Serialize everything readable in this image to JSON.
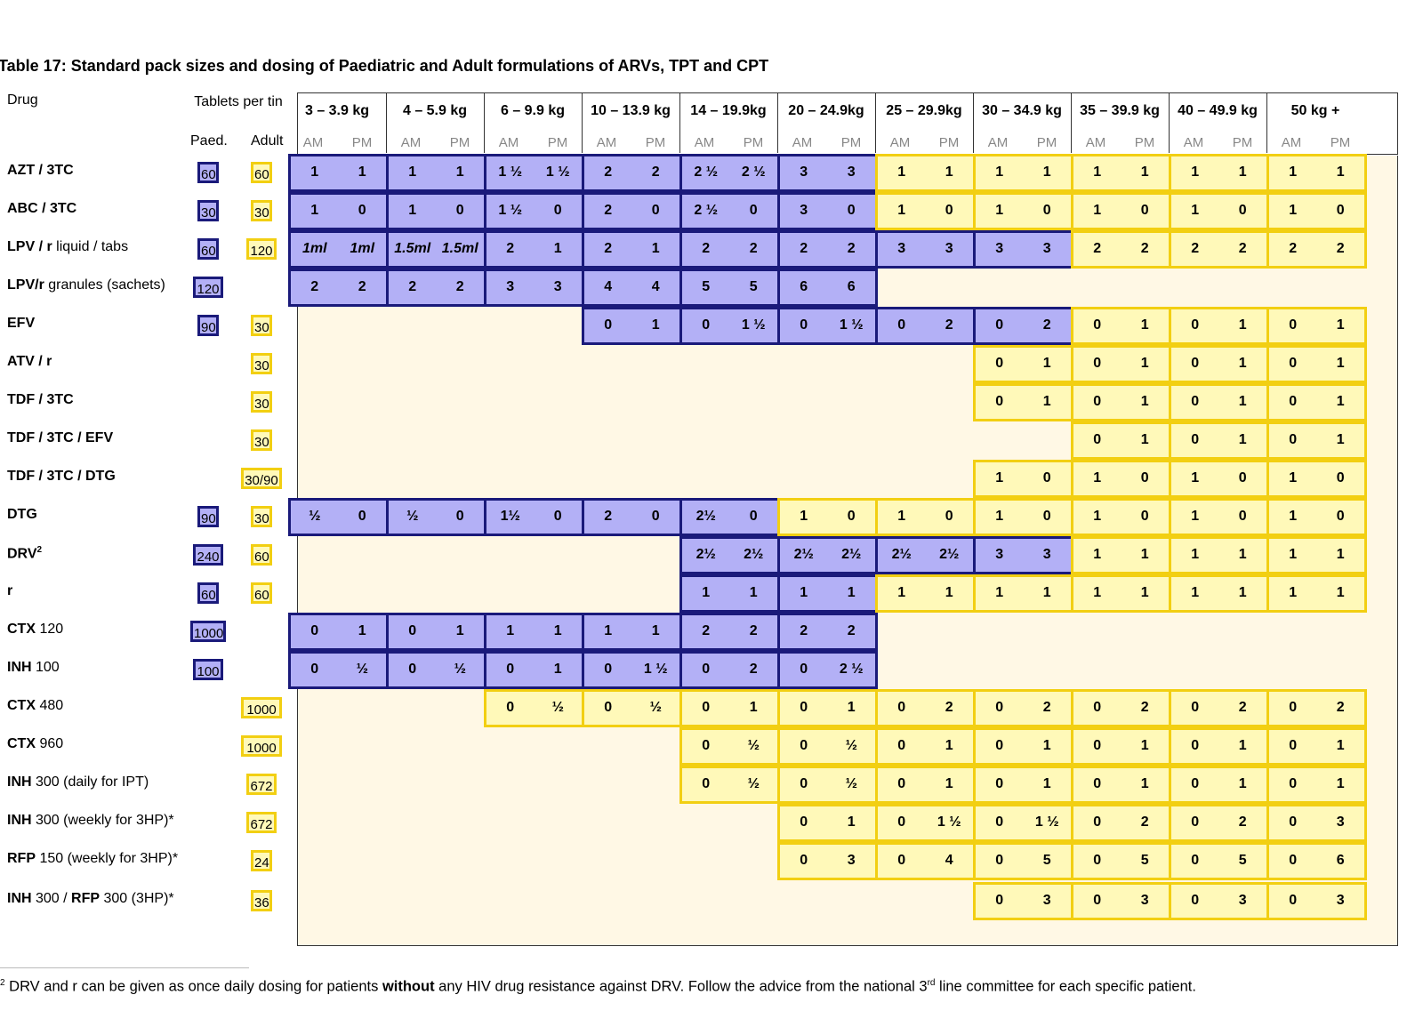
{
  "title": "Table 17:   Standard pack sizes and dosing of Paediatric and Adult formulations of ARVs, TPT and CPT",
  "headers": {
    "drug": "Drug",
    "tablets_per_tin": "Tablets per tin",
    "paed": "Paed.",
    "adult": "Adult",
    "am": "AM",
    "pm": "PM"
  },
  "weight_bands": [
    "3 – 3.9 kg",
    "4 – 5.9 kg",
    "6 – 9.9 kg",
    "10 – 13.9 kg",
    "14 – 19.9kg",
    "20 – 24.9kg",
    "25 – 29.9kg",
    "30 – 34.9 kg",
    "35 – 39.9 kg",
    "40 – 49.9 kg",
    "50 kg +"
  ],
  "colors": {
    "paediatric_fill": "#b3b0f6",
    "paediatric_border": "#1a1a7a",
    "adult_fill": "#fff9b9",
    "adult_border": "#f2cf12",
    "empty_fill": "#fff8e5"
  },
  "rows": [
    {
      "drug_bold": "AZT / 3TC",
      "drug_rest": "",
      "drug_sup": "",
      "paed": "60",
      "adult": "60",
      "doses": [
        [
          "p",
          "1",
          "1"
        ],
        [
          "p",
          "1",
          "1"
        ],
        [
          "p",
          "1 ½",
          "1 ½"
        ],
        [
          "p",
          "2",
          "2"
        ],
        [
          "p",
          "2 ½",
          "2 ½"
        ],
        [
          "p",
          "3",
          "3"
        ],
        [
          "a",
          "1",
          "1"
        ],
        [
          "a",
          "1",
          "1"
        ],
        [
          "a",
          "1",
          "1"
        ],
        [
          "a",
          "1",
          "1"
        ],
        [
          "a",
          "1",
          "1"
        ]
      ]
    },
    {
      "drug_bold": "ABC / 3TC",
      "drug_rest": "",
      "drug_sup": "",
      "paed": "30",
      "adult": "30",
      "doses": [
        [
          "p",
          "1",
          "0"
        ],
        [
          "p",
          "1",
          "0"
        ],
        [
          "p",
          "1 ½",
          "0"
        ],
        [
          "p",
          "2",
          "0"
        ],
        [
          "p",
          "2 ½",
          "0"
        ],
        [
          "p",
          "3",
          "0"
        ],
        [
          "a",
          "1",
          "0"
        ],
        [
          "a",
          "1",
          "0"
        ],
        [
          "a",
          "1",
          "0"
        ],
        [
          "a",
          "1",
          "0"
        ],
        [
          "a",
          "1",
          "0"
        ]
      ]
    },
    {
      "drug_bold": "LPV / r",
      "drug_rest": " liquid / tabs",
      "drug_sup": "",
      "paed": "60",
      "adult": "120",
      "doses": [
        [
          "pi",
          "1ml",
          "1ml"
        ],
        [
          "pi",
          "1.5ml",
          "1.5ml"
        ],
        [
          "p",
          "2",
          "1"
        ],
        [
          "p",
          "2",
          "1"
        ],
        [
          "p",
          "2",
          "2"
        ],
        [
          "p",
          "2",
          "2"
        ],
        [
          "p",
          "3",
          "3"
        ],
        [
          "p",
          "3",
          "3"
        ],
        [
          "a",
          "2",
          "2"
        ],
        [
          "a",
          "2",
          "2"
        ],
        [
          "a",
          "2",
          "2"
        ]
      ]
    },
    {
      "drug_bold": "LPV/r",
      "drug_rest": " granules (sachets)",
      "drug_sup": "",
      "paed": "120",
      "adult": "",
      "doses": [
        [
          "p",
          "2",
          "2"
        ],
        [
          "p",
          "2",
          "2"
        ],
        [
          "p",
          "3",
          "3"
        ],
        [
          "p",
          "4",
          "4"
        ],
        [
          "p",
          "5",
          "5"
        ],
        [
          "p",
          "6",
          "6"
        ],
        null,
        null,
        null,
        null,
        null
      ]
    },
    {
      "drug_bold": "EFV",
      "drug_rest": "",
      "drug_sup": "",
      "paed": "90",
      "adult": "30",
      "doses": [
        null,
        null,
        null,
        [
          "p",
          "0",
          "1"
        ],
        [
          "p",
          "0",
          "1 ½"
        ],
        [
          "p",
          "0",
          "1 ½"
        ],
        [
          "p",
          "0",
          "2"
        ],
        [
          "p",
          "0",
          "2"
        ],
        [
          "a",
          "0",
          "1"
        ],
        [
          "a",
          "0",
          "1"
        ],
        [
          "a",
          "0",
          "1"
        ]
      ]
    },
    {
      "drug_bold": "ATV / r",
      "drug_rest": "",
      "drug_sup": "",
      "paed": "",
      "adult": "30",
      "doses": [
        null,
        null,
        null,
        null,
        null,
        null,
        null,
        [
          "a",
          "0",
          "1"
        ],
        [
          "a",
          "0",
          "1"
        ],
        [
          "a",
          "0",
          "1"
        ],
        [
          "a",
          "0",
          "1"
        ]
      ]
    },
    {
      "drug_bold": "TDF / 3TC",
      "drug_rest": "",
      "drug_sup": "",
      "paed": "",
      "adult": "30",
      "doses": [
        null,
        null,
        null,
        null,
        null,
        null,
        null,
        [
          "a",
          "0",
          "1"
        ],
        [
          "a",
          "0",
          "1"
        ],
        [
          "a",
          "0",
          "1"
        ],
        [
          "a",
          "0",
          "1"
        ]
      ]
    },
    {
      "drug_bold": "TDF / 3TC / EFV",
      "drug_rest": "",
      "drug_sup": "",
      "paed": "",
      "adult": "30",
      "doses": [
        null,
        null,
        null,
        null,
        null,
        null,
        null,
        null,
        [
          "a",
          "0",
          "1"
        ],
        [
          "a",
          "0",
          "1"
        ],
        [
          "a",
          "0",
          "1"
        ]
      ]
    },
    {
      "drug_bold": "TDF / 3TC / DTG",
      "drug_rest": "",
      "drug_sup": "",
      "paed": "",
      "adult": "30/90",
      "doses": [
        null,
        null,
        null,
        null,
        null,
        null,
        null,
        [
          "a",
          "1",
          "0"
        ],
        [
          "a",
          "1",
          "0"
        ],
        [
          "a",
          "1",
          "0"
        ],
        [
          "a",
          "1",
          "0"
        ]
      ]
    },
    {
      "drug_bold": "DTG",
      "drug_rest": "",
      "drug_sup": "",
      "paed": "90",
      "adult": "30",
      "doses": [
        [
          "p",
          "½",
          "0"
        ],
        [
          "p",
          "½",
          "0"
        ],
        [
          "p",
          "1½",
          "0"
        ],
        [
          "p",
          "2",
          "0"
        ],
        [
          "p",
          "2½",
          "0"
        ],
        [
          "a",
          "1",
          "0"
        ],
        [
          "a",
          "1",
          "0"
        ],
        [
          "a",
          "1",
          "0"
        ],
        [
          "a",
          "1",
          "0"
        ],
        [
          "a",
          "1",
          "0"
        ],
        [
          "a",
          "1",
          "0"
        ]
      ]
    },
    {
      "drug_bold": "DRV",
      "drug_rest": "",
      "drug_sup": "2",
      "paed": "240",
      "adult": "60",
      "doses": [
        null,
        null,
        null,
        null,
        [
          "p",
          "2½",
          "2½"
        ],
        [
          "p",
          "2½",
          "2½"
        ],
        [
          "p",
          "2½",
          "2½"
        ],
        [
          "p",
          "3",
          "3"
        ],
        [
          "a",
          "1",
          "1"
        ],
        [
          "a",
          "1",
          "1"
        ],
        [
          "a",
          "1",
          "1"
        ]
      ]
    },
    {
      "drug_bold": "r",
      "drug_rest": "",
      "drug_sup": "",
      "paed": "60",
      "adult": "60",
      "doses": [
        null,
        null,
        null,
        null,
        [
          "p",
          "1",
          "1"
        ],
        [
          "p",
          "1",
          "1"
        ],
        [
          "a",
          "1",
          "1"
        ],
        [
          "a",
          "1",
          "1"
        ],
        [
          "a",
          "1",
          "1"
        ],
        [
          "a",
          "1",
          "1"
        ],
        [
          "a",
          "1",
          "1"
        ]
      ]
    },
    {
      "drug_bold": "CTX",
      "drug_rest": " 120",
      "drug_sup": "",
      "paed": "1000",
      "adult": "",
      "doses": [
        [
          "p",
          "0",
          "1"
        ],
        [
          "p",
          "0",
          "1"
        ],
        [
          "p",
          "1",
          "1"
        ],
        [
          "p",
          "1",
          "1"
        ],
        [
          "p",
          "2",
          "2"
        ],
        [
          "p",
          "2",
          "2"
        ],
        null,
        null,
        null,
        null,
        null
      ]
    },
    {
      "drug_bold": "INH",
      "drug_rest": " 100",
      "drug_sup": "",
      "paed": "100",
      "adult": "",
      "doses": [
        [
          "p",
          "0",
          "½"
        ],
        [
          "p",
          "0",
          "½"
        ],
        [
          "p",
          "0",
          "1"
        ],
        [
          "p",
          "0",
          "1 ½"
        ],
        [
          "p",
          "0",
          "2"
        ],
        [
          "p",
          "0",
          "2 ½"
        ],
        null,
        null,
        null,
        null,
        null
      ]
    },
    {
      "drug_bold": "CTX",
      "drug_rest": " 480",
      "drug_sup": "",
      "paed": "",
      "adult": "1000",
      "doses": [
        null,
        null,
        [
          "a",
          "0",
          "½"
        ],
        [
          "a",
          "0",
          "½"
        ],
        [
          "a",
          "0",
          "1"
        ],
        [
          "a",
          "0",
          "1"
        ],
        [
          "a",
          "0",
          "2"
        ],
        [
          "a",
          "0",
          "2"
        ],
        [
          "a",
          "0",
          "2"
        ],
        [
          "a",
          "0",
          "2"
        ],
        [
          "a",
          "0",
          "2"
        ]
      ]
    },
    {
      "drug_bold": "CTX",
      "drug_rest": " 960",
      "drug_sup": "",
      "paed": "",
      "adult": "1000",
      "doses": [
        null,
        null,
        null,
        null,
        [
          "a",
          "0",
          "½"
        ],
        [
          "a",
          "0",
          "½"
        ],
        [
          "a",
          "0",
          "1"
        ],
        [
          "a",
          "0",
          "1"
        ],
        [
          "a",
          "0",
          "1"
        ],
        [
          "a",
          "0",
          "1"
        ],
        [
          "a",
          "0",
          "1"
        ]
      ]
    },
    {
      "drug_bold": "INH",
      "drug_rest": " 300 (daily for IPT)",
      "drug_sup": "",
      "paed": "",
      "adult": "672",
      "doses": [
        null,
        null,
        null,
        null,
        [
          "a",
          "0",
          "½"
        ],
        [
          "a",
          "0",
          "½"
        ],
        [
          "a",
          "0",
          "1"
        ],
        [
          "a",
          "0",
          "1"
        ],
        [
          "a",
          "0",
          "1"
        ],
        [
          "a",
          "0",
          "1"
        ],
        [
          "a",
          "0",
          "1"
        ]
      ]
    },
    {
      "drug_bold": "INH",
      "drug_rest": " 300 (weekly for 3HP)*",
      "drug_sup": "",
      "paed": "",
      "adult": "672",
      "doses": [
        null,
        null,
        null,
        null,
        null,
        [
          "a",
          "0",
          "1"
        ],
        [
          "a",
          "0",
          "1 ½"
        ],
        [
          "a",
          "0",
          "1 ½"
        ],
        [
          "a",
          "0",
          "2"
        ],
        [
          "a",
          "0",
          "2"
        ],
        [
          "a",
          "0",
          "3"
        ]
      ]
    },
    {
      "drug_bold": "RFP",
      "drug_rest": " 150 (weekly for 3HP)*",
      "drug_sup": "",
      "paed": "",
      "adult": "24",
      "doses": [
        null,
        null,
        null,
        null,
        null,
        [
          "a",
          "0",
          "3"
        ],
        [
          "a",
          "0",
          "4"
        ],
        [
          "a",
          "0",
          "5"
        ],
        [
          "a",
          "0",
          "5"
        ],
        [
          "a",
          "0",
          "5"
        ],
        [
          "a",
          "0",
          "6"
        ]
      ]
    },
    {
      "drug_bold": "INH",
      "drug_rest": " 300 / ",
      "drug_bold2": "RFP",
      "drug_rest2": " 300 (3HP)*",
      "drug_sup": "",
      "paed": "",
      "adult": "36",
      "doses": [
        null,
        null,
        null,
        null,
        null,
        null,
        null,
        [
          "a",
          "0",
          "3"
        ],
        [
          "a",
          "0",
          "3"
        ],
        [
          "a",
          "0",
          "3"
        ],
        [
          "a",
          "0",
          "3"
        ]
      ]
    }
  ],
  "footnote": {
    "mark": "2",
    "text_before": " DRV and r can be given as once daily dosing for patients ",
    "bold": "without",
    "text_after_1": " any HIV drug resistance against DRV. Follow the advice from the national 3",
    "sup": "rd",
    "text_after_2": " line committee for each specific patient."
  }
}
